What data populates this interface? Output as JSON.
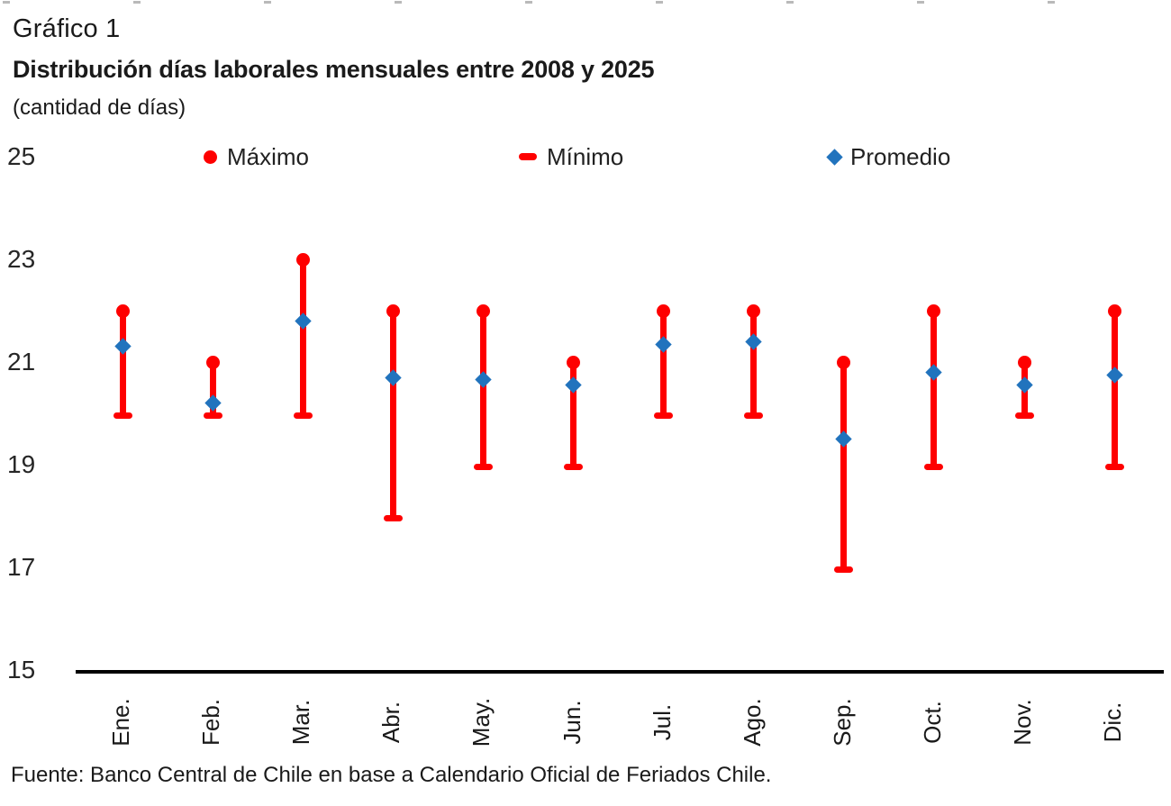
{
  "page": {
    "title": "Gráfico 1",
    "subtitle": "Distribución días laborales mensuales entre 2008 y 2025",
    "units_note": "(cantidad de días)",
    "source": "Fuente: Banco Central de Chile en base a Calendario Oficial de Feriados Chile."
  },
  "colors": {
    "red_series": "#fe0000",
    "blue_series": "#2173bd",
    "axis": "#000000",
    "text": "#1a1a1a"
  },
  "chart_data": {
    "type": "scatter",
    "subtype": "min-max-average range chart",
    "title": "Distribución días laborales mensuales entre 2008 y 2025",
    "ylabel": "(cantidad de días)",
    "categories": [
      "Ene.",
      "Feb.",
      "Mar.",
      "Abr.",
      "May.",
      "Jun.",
      "Jul.",
      "Ago.",
      "Sep.",
      "Oct.",
      "Nov.",
      "Dic."
    ],
    "series": [
      {
        "name": "Máximo",
        "marker": "circle",
        "color": "#fe0000",
        "values": [
          22,
          21,
          23,
          22,
          22,
          21,
          22,
          22,
          21,
          22,
          21,
          22
        ]
      },
      {
        "name": "Mínimo",
        "marker": "dash",
        "color": "#fe0000",
        "values": [
          20,
          20,
          20,
          18,
          19,
          19,
          20,
          20,
          17,
          19,
          20,
          19
        ]
      },
      {
        "name": "Promedio",
        "marker": "diamond",
        "color": "#2173bd",
        "values": [
          21.3,
          20.2,
          21.8,
          20.7,
          20.65,
          20.55,
          21.35,
          21.4,
          19.5,
          20.8,
          20.55,
          20.75
        ]
      }
    ],
    "ylim": [
      15,
      25
    ],
    "y_ticks": [
      25,
      23,
      21,
      19,
      17,
      15
    ],
    "grid": false,
    "legend_position": "top",
    "legend": [
      {
        "label": "Máximo",
        "marker": "circle"
      },
      {
        "label": "Mínimo",
        "marker": "dash"
      },
      {
        "label": "Promedio",
        "marker": "diamond"
      }
    ]
  }
}
